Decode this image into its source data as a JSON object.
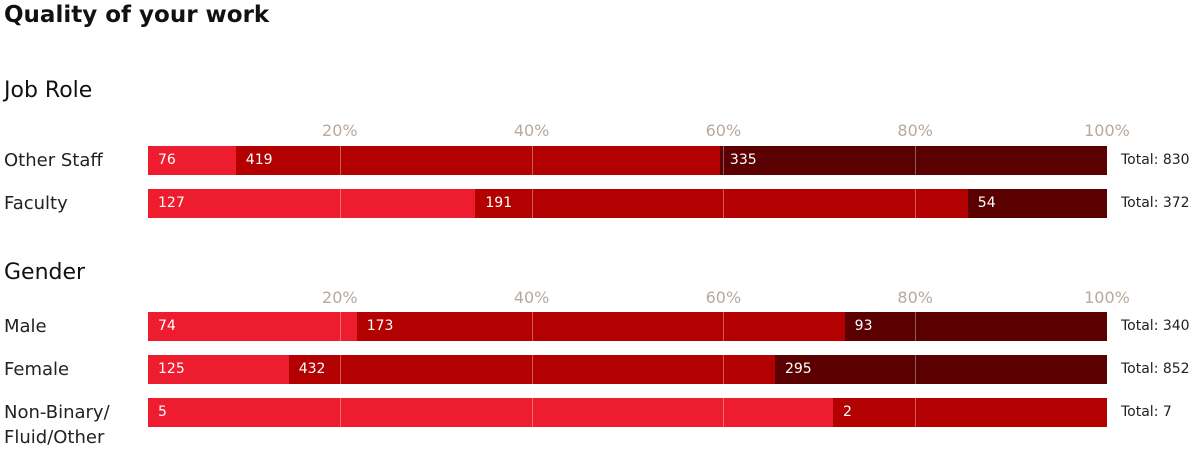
{
  "title": "Quality of your work",
  "chart_data": [
    {
      "type": "stacked-bar-100",
      "title": "Job Role",
      "categories": [
        "Other Staff",
        "Faculty"
      ],
      "series": [
        {
          "color": "#ed1c2e",
          "values": [
            76,
            127
          ]
        },
        {
          "color": "#b30000",
          "values": [
            419,
            191
          ]
        },
        {
          "color": "#5a0000",
          "values": [
            335,
            54
          ]
        }
      ],
      "totals": [
        830,
        372
      ],
      "total_labels": [
        "Total: 830",
        "Total: 372"
      ],
      "xlim": [
        0,
        100
      ],
      "xticks": [
        {
          "value": 20,
          "label": "20%"
        },
        {
          "value": 40,
          "label": "40%"
        },
        {
          "value": 60,
          "label": "60%"
        },
        {
          "value": 80,
          "label": "80%"
        },
        {
          "value": 100,
          "label": "100%"
        }
      ],
      "grid": true
    },
    {
      "type": "stacked-bar-100",
      "title": "Gender",
      "categories": [
        "Male",
        "Female",
        "Non-Binary/\nFluid/Other"
      ],
      "series": [
        {
          "color": "#ed1c2e",
          "values": [
            74,
            125,
            5
          ]
        },
        {
          "color": "#b30000",
          "values": [
            173,
            432,
            2
          ]
        },
        {
          "color": "#5a0000",
          "values": [
            93,
            295,
            null
          ]
        }
      ],
      "totals": [
        340,
        852,
        7
      ],
      "total_labels": [
        "Total: 340",
        "Total: 852",
        "Total: 7"
      ],
      "xlim": [
        0,
        100
      ],
      "xticks": [
        {
          "value": 20,
          "label": "20%"
        },
        {
          "value": 40,
          "label": "40%"
        },
        {
          "value": 60,
          "label": "60%"
        },
        {
          "value": 80,
          "label": "80%"
        },
        {
          "value": 100,
          "label": "100%"
        }
      ],
      "grid": true
    }
  ]
}
